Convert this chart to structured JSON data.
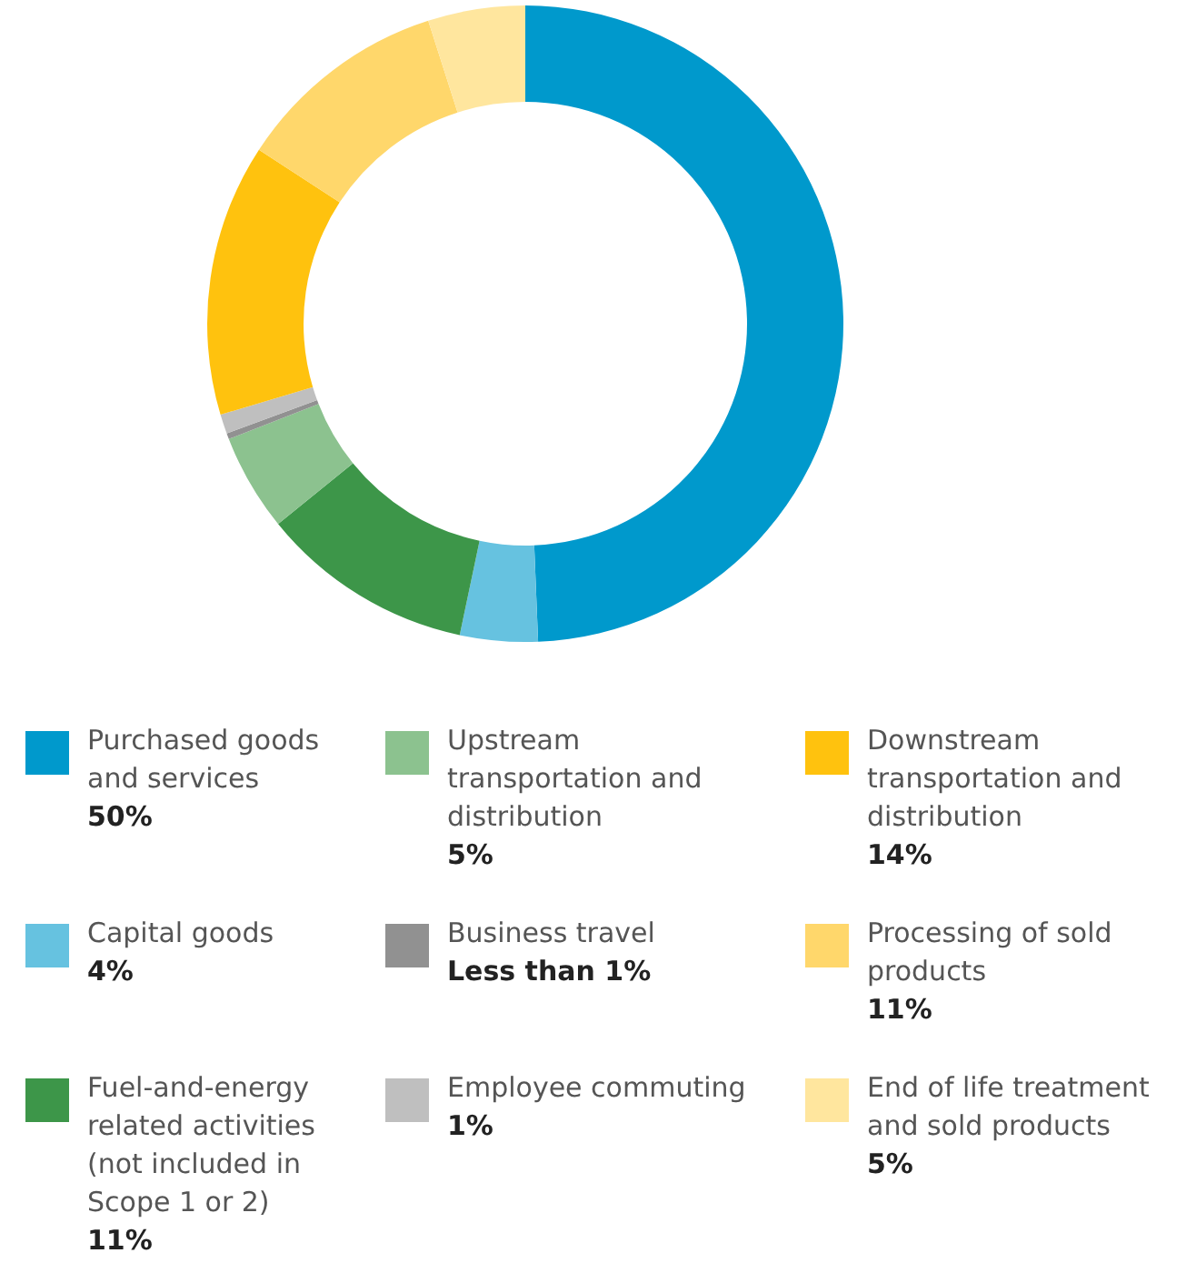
{
  "chart_data": {
    "type": "donut",
    "categories": [
      "Purchased goods and services",
      "Capital goods",
      "Fuel-and-energy related activities (not included in Scope 1 or 2)",
      "Upstream transportation and distribution",
      "Business travel",
      "Employee commuting",
      "Downstream transportation and distribution",
      "Processing of sold products",
      "End of life treatment and sold products"
    ],
    "values": [
      50,
      4,
      11,
      5,
      0.3,
      1,
      14,
      11,
      5
    ],
    "value_labels": [
      "50%",
      "4%",
      "11%",
      "5%",
      "Less than 1%",
      "1%",
      "14%",
      "11%",
      "5%"
    ],
    "colors": [
      "#0099cc",
      "#66c2e0",
      "#3d9649",
      "#8cc28f",
      "#919191",
      "#bfbfbf",
      "#ffc20e",
      "#ffd76b",
      "#ffe69e"
    ],
    "legend": "bottom"
  }
}
